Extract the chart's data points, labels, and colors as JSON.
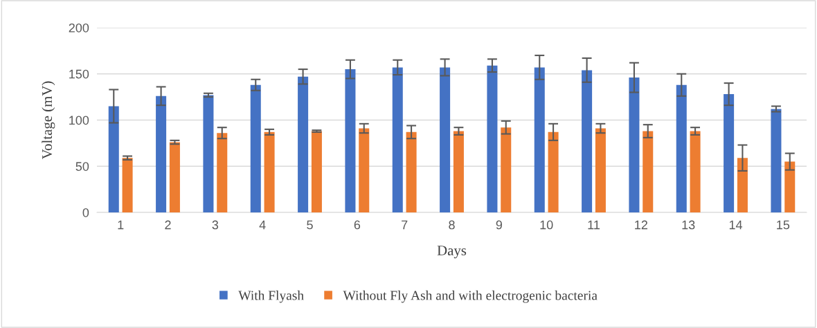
{
  "chart_data": {
    "type": "bar",
    "xlabel": "Days",
    "ylabel": "Voltage (mV)",
    "categories": [
      "1",
      "2",
      "3",
      "4",
      "5",
      "6",
      "7",
      "8",
      "9",
      "10",
      "11",
      "12",
      "13",
      "14",
      "15"
    ],
    "series": [
      {
        "name": "With Flyash",
        "color": "#4472c4",
        "values": [
          115,
          126,
          127,
          138,
          147,
          155,
          157,
          157,
          159,
          157,
          154,
          146,
          138,
          128,
          112
        ],
        "errors": [
          18,
          10,
          2,
          6,
          8,
          10,
          8,
          9,
          7,
          13,
          13,
          16,
          12,
          12,
          3
        ]
      },
      {
        "name": "Without Fly Ash and with electrogenic bacteria",
        "color": "#ed7d31",
        "values": [
          59,
          76,
          86,
          87,
          88,
          91,
          87,
          88,
          92,
          87,
          91,
          88,
          88,
          59,
          55
        ],
        "errors": [
          2,
          2,
          6,
          3,
          1,
          5,
          7,
          4,
          7,
          9,
          5,
          7,
          4,
          14,
          9
        ]
      }
    ],
    "ylim": [
      0,
      200
    ],
    "yticks": [
      0,
      50,
      100,
      150,
      200
    ],
    "grid": "y",
    "legend": "bottom"
  }
}
